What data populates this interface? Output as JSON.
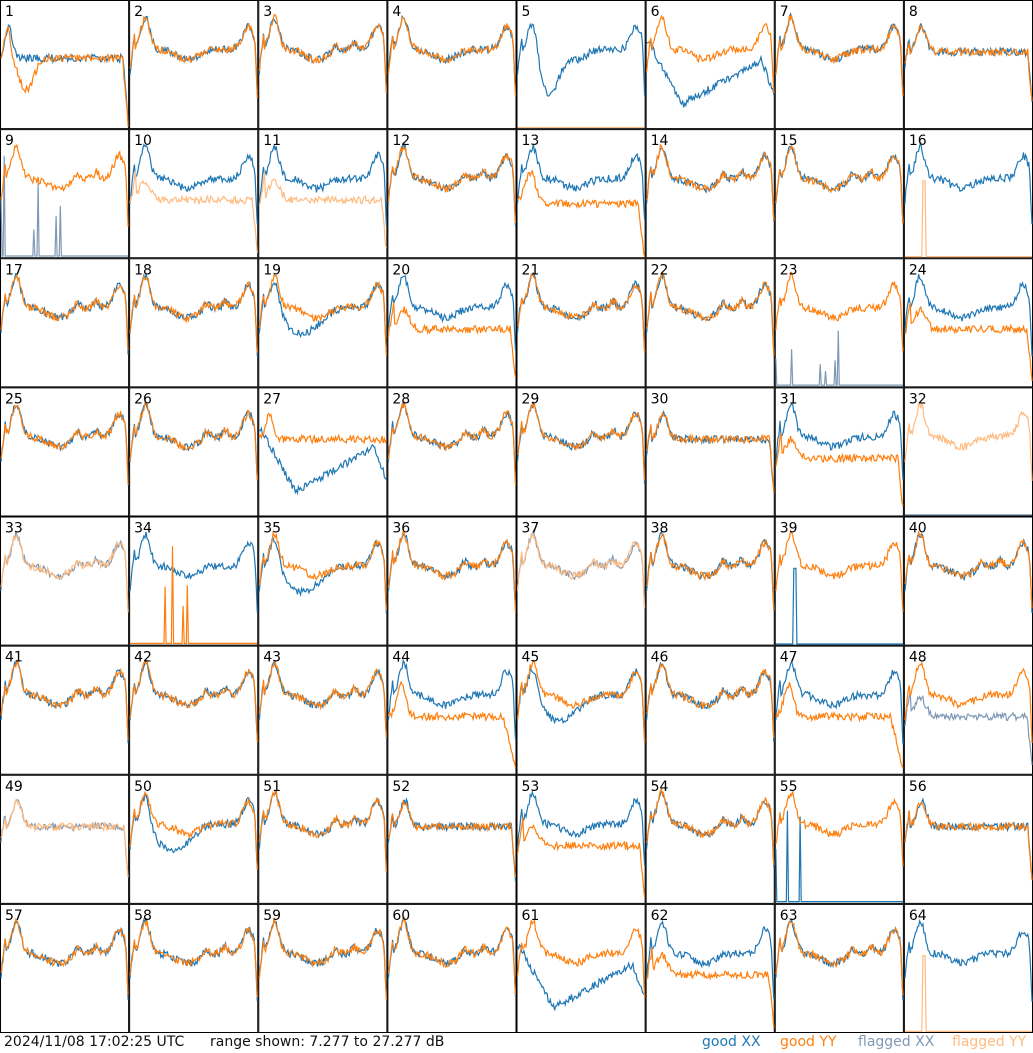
{
  "footer": {
    "timestamp": "2024/11/08 17:02:25 UTC",
    "range_prefix": "range shown: ",
    "range_min": "7.277",
    "range_sep": " to ",
    "range_max": "27.277",
    "range_unit": " dB"
  },
  "legend": [
    {
      "label": "good XX",
      "color": "#1f77b4"
    },
    {
      "label": "good YY",
      "color": "#ff7f0e"
    },
    {
      "label": "flagged XX",
      "color": "#7f99b5"
    },
    {
      "label": "flagged YY",
      "color": "#ffbb80"
    }
  ],
  "chart_data": {
    "type": "line",
    "title": "",
    "xlabel": "",
    "ylabel": "",
    "ylim": [
      7.277,
      27.277
    ],
    "grid": "8x8 small multiples",
    "panels": [
      {
        "id": 1,
        "xx": "good",
        "yy": "good",
        "xx_shape": "flat_low_right",
        "yy_shape": "dip_left"
      },
      {
        "id": 2,
        "xx": "good",
        "yy": "good",
        "shape": "bandpass"
      },
      {
        "id": 3,
        "xx": "good",
        "yy": "good",
        "shape": "bandpass_wavy"
      },
      {
        "id": 4,
        "xx": "good",
        "yy": "good",
        "shape": "bandpass"
      },
      {
        "id": 5,
        "xx": "good",
        "yy": "flagged",
        "xx_shape": "deep_dip",
        "yy_shape": "zero"
      },
      {
        "id": 6,
        "xx": "good",
        "yy": "good",
        "xx_shape": "deep_drop",
        "yy_shape": "bandpass"
      },
      {
        "id": 7,
        "xx": "good",
        "yy": "good",
        "shape": "bandpass"
      },
      {
        "id": 8,
        "xx": "good",
        "yy": "good",
        "shape": "bandpass_flat"
      },
      {
        "id": 9,
        "xx": "flagged",
        "yy": "good",
        "xx_shape": "spikes",
        "yy_shape": "bandpass_wavy"
      },
      {
        "id": 10,
        "xx": "good",
        "yy": "flagged",
        "xx_shape": "bandpass",
        "yy_shape": "low_flat"
      },
      {
        "id": 11,
        "xx": "good",
        "yy": "flagged",
        "xx_shape": "bandpass",
        "yy_shape": "low_flat"
      },
      {
        "id": 12,
        "xx": "good",
        "yy": "good",
        "shape": "bandpass_wavy"
      },
      {
        "id": 13,
        "xx": "good",
        "yy": "good",
        "xx_shape": "bandpass",
        "yy_shape": "low_drop_end"
      },
      {
        "id": 14,
        "xx": "good",
        "yy": "good",
        "shape": "bandpass_wavy"
      },
      {
        "id": 15,
        "xx": "good",
        "yy": "good",
        "shape": "bandpass_wavy"
      },
      {
        "id": 16,
        "xx": "good",
        "yy": "flagged",
        "xx_shape": "bandpass",
        "yy_shape": "zero_spike"
      },
      {
        "id": 17,
        "xx": "good",
        "yy": "good",
        "shape": "bandpass_wavy"
      },
      {
        "id": 18,
        "xx": "good",
        "yy": "good",
        "shape": "bandpass_wavy"
      },
      {
        "id": 19,
        "xx": "good",
        "yy": "good",
        "xx_shape": "dip",
        "yy_shape": "bandpass"
      },
      {
        "id": 20,
        "xx": "good",
        "yy": "good",
        "xx_shape": "bandpass",
        "yy_shape": "low_flat"
      },
      {
        "id": 21,
        "xx": "good",
        "yy": "good",
        "shape": "bandpass_wavy"
      },
      {
        "id": 22,
        "xx": "good",
        "yy": "good",
        "shape": "bandpass_wavy"
      },
      {
        "id": 23,
        "xx": "flagged",
        "yy": "good",
        "xx_shape": "spikes",
        "yy_shape": "bandpass"
      },
      {
        "id": 24,
        "xx": "good",
        "yy": "good",
        "xx_shape": "bandpass",
        "yy_shape": "low_flat"
      },
      {
        "id": 25,
        "xx": "good",
        "yy": "good",
        "shape": "bandpass_wavy"
      },
      {
        "id": 26,
        "xx": "good",
        "yy": "good",
        "shape": "bandpass_wavy"
      },
      {
        "id": 27,
        "xx": "good",
        "yy": "good",
        "xx_shape": "deep_drop",
        "yy_shape": "flat"
      },
      {
        "id": 28,
        "xx": "good",
        "yy": "good",
        "shape": "bandpass_wavy"
      },
      {
        "id": 29,
        "xx": "good",
        "yy": "good",
        "shape": "bandpass_wavy"
      },
      {
        "id": 30,
        "xx": "good",
        "yy": "good",
        "shape": "bandpass_flat"
      },
      {
        "id": 31,
        "xx": "good",
        "yy": "good",
        "xx_shape": "bandpass",
        "yy_shape": "low_flat"
      },
      {
        "id": 32,
        "xx": "flagged",
        "yy": "flagged",
        "xx_shape": "zero",
        "yy_shape": "bandpass"
      },
      {
        "id": 33,
        "xx": "flagged",
        "yy": "flagged",
        "shape": "bandpass_wavy"
      },
      {
        "id": 34,
        "xx": "good",
        "yy": "good",
        "xx_shape": "bandpass",
        "yy_shape": "spikes"
      },
      {
        "id": 35,
        "xx": "good",
        "yy": "good",
        "xx_shape": "dip",
        "yy_shape": "bandpass"
      },
      {
        "id": 36,
        "xx": "good",
        "yy": "good",
        "shape": "bandpass_wavy"
      },
      {
        "id": 37,
        "xx": "flagged",
        "yy": "flagged",
        "shape": "bandpass_wavy"
      },
      {
        "id": 38,
        "xx": "good",
        "yy": "good",
        "shape": "bandpass_wavy"
      },
      {
        "id": 39,
        "xx": "good",
        "yy": "good",
        "xx_shape": "zero_spike",
        "yy_shape": "bandpass"
      },
      {
        "id": 40,
        "xx": "good",
        "yy": "good",
        "shape": "bandpass_wavy"
      },
      {
        "id": 41,
        "xx": "good",
        "yy": "good",
        "shape": "bandpass_wavy"
      },
      {
        "id": 42,
        "xx": "good",
        "yy": "good",
        "shape": "bandpass_wavy"
      },
      {
        "id": 43,
        "xx": "good",
        "yy": "good",
        "shape": "bandpass_wavy"
      },
      {
        "id": 44,
        "xx": "good",
        "yy": "good",
        "xx_shape": "bandpass",
        "yy_shape": "flat_drop_end"
      },
      {
        "id": 45,
        "xx": "good",
        "yy": "good",
        "xx_shape": "dip",
        "yy_shape": "bandpass"
      },
      {
        "id": 46,
        "xx": "good",
        "yy": "good",
        "shape": "bandpass_wavy"
      },
      {
        "id": 47,
        "xx": "good",
        "yy": "good",
        "xx_shape": "bandpass",
        "yy_shape": "flat_drop_end"
      },
      {
        "id": 48,
        "xx": "flagged",
        "yy": "good",
        "xx_shape": "low_flat",
        "yy_shape": "bandpass"
      },
      {
        "id": 49,
        "xx": "flagged",
        "yy": "flagged",
        "shape": "bandpass_flat"
      },
      {
        "id": 50,
        "xx": "good",
        "yy": "good",
        "xx_shape": "dip",
        "yy_shape": "bandpass"
      },
      {
        "id": 51,
        "xx": "good",
        "yy": "good",
        "shape": "bandpass_wavy"
      },
      {
        "id": 52,
        "xx": "good",
        "yy": "good",
        "shape": "bandpass_flat"
      },
      {
        "id": 53,
        "xx": "good",
        "yy": "good",
        "xx_shape": "bandpass",
        "yy_shape": "low_flat"
      },
      {
        "id": 54,
        "xx": "good",
        "yy": "good",
        "shape": "bandpass_wavy"
      },
      {
        "id": 55,
        "xx": "good",
        "yy": "good",
        "xx_shape": "spikes",
        "yy_shape": "bandpass"
      },
      {
        "id": 56,
        "xx": "good",
        "yy": "good",
        "shape": "bandpass_flat"
      },
      {
        "id": 57,
        "xx": "good",
        "yy": "good",
        "shape": "bandpass_wavy"
      },
      {
        "id": 58,
        "xx": "good",
        "yy": "good",
        "shape": "bandpass_wavy"
      },
      {
        "id": 59,
        "xx": "good",
        "yy": "good",
        "shape": "bandpass_wavy"
      },
      {
        "id": 60,
        "xx": "good",
        "yy": "good",
        "shape": "bandpass_wavy"
      },
      {
        "id": 61,
        "xx": "good",
        "yy": "good",
        "xx_shape": "deep_drop",
        "yy_shape": "bandpass"
      },
      {
        "id": 62,
        "xx": "good",
        "yy": "good",
        "xx_shape": "bandpass",
        "yy_shape": "low_flat"
      },
      {
        "id": 63,
        "xx": "good",
        "yy": "good",
        "shape": "bandpass_wavy"
      },
      {
        "id": 64,
        "xx": "good",
        "yy": "flagged",
        "xx_shape": "bandpass",
        "yy_shape": "zero_spike"
      }
    ]
  }
}
